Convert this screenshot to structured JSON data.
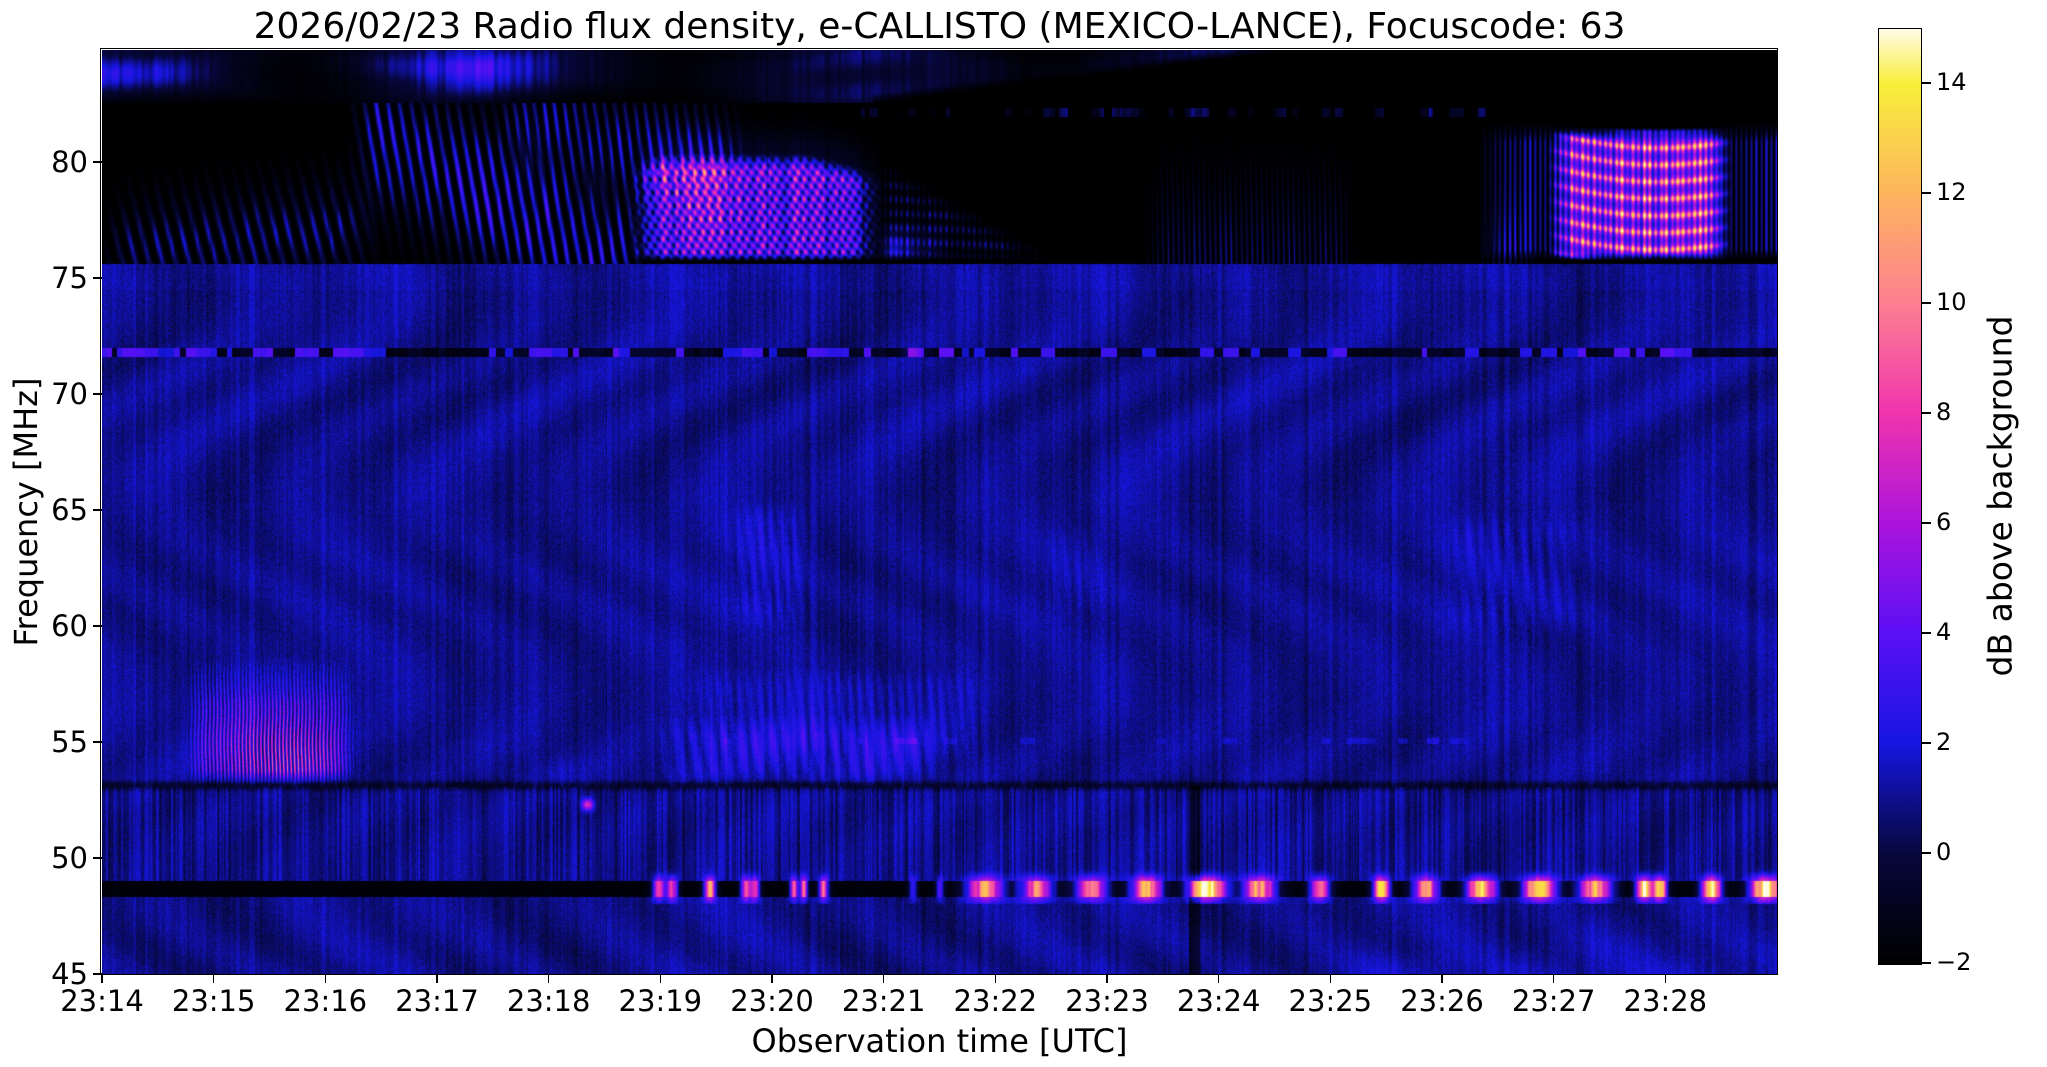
{
  "chart_data": {
    "type": "heatmap",
    "title": "2026/02/23  Radio flux density, e-CALLISTO (MEXICO-LANCE), Focuscode: 63",
    "xlabel": "Observation time [UTC]",
    "ylabel": "Frequency [MHz]",
    "colorbar_label": "dB above background",
    "meta": {
      "date": "2026/02/23",
      "network": "e-CALLISTO",
      "station": "MEXICO-LANCE",
      "focuscode": "63"
    },
    "x_ticks": [
      "23:14",
      "23:15",
      "23:16",
      "23:17",
      "23:18",
      "23:19",
      "23:20",
      "23:21",
      "23:22",
      "23:23",
      "23:24",
      "23:25",
      "23:26",
      "23:27",
      "23:28"
    ],
    "time_span_minutes": 15,
    "x_start": "23:14",
    "x_end": "23:29",
    "y_ticks": [
      80,
      75,
      70,
      65,
      60,
      55,
      50,
      45
    ],
    "y_range": [
      45,
      84.83
    ],
    "value_range": [
      -2,
      15
    ],
    "grid": false,
    "colorbar_ticks": [
      {
        "v": 14,
        "label": "14"
      },
      {
        "v": 12,
        "label": "12"
      },
      {
        "v": 10,
        "label": "10"
      },
      {
        "v": 8,
        "label": "8"
      },
      {
        "v": 6,
        "label": "6"
      },
      {
        "v": 4,
        "label": "4"
      },
      {
        "v": 2,
        "label": "2"
      },
      {
        "v": 0,
        "label": "0"
      },
      {
        "v": -2,
        "label": "−2"
      }
    ],
    "colormap_stops": [
      {
        "v": -2,
        "c": "#000000"
      },
      {
        "v": 0,
        "c": "#07073c"
      },
      {
        "v": 2,
        "c": "#1616e0"
      },
      {
        "v": 4,
        "c": "#5a10f5"
      },
      {
        "v": 6,
        "c": "#ab14dc"
      },
      {
        "v": 8,
        "c": "#ef34ae"
      },
      {
        "v": 10,
        "c": "#fc7f90"
      },
      {
        "v": 12,
        "c": "#fdb45f"
      },
      {
        "v": 14,
        "c": "#f8ef3a"
      },
      {
        "v": 15,
        "c": "#fffbe6"
      }
    ],
    "features": {
      "band_top": 82.55,
      "band_mid": 75.62,
      "band_rfi": [
        48.3,
        49.0
      ],
      "rfi_base": -1.75,
      "top_strip": {
        "amp": 2.4,
        "fade_t0": 6.9,
        "fade_slope": 0.62,
        "blob": {
          "t": 3.05,
          "f": 84.2,
          "amp": 2.6
        }
      },
      "stripes_main": {
        "t0": 2.2,
        "t1": 4.9,
        "fc0": 81.8,
        "drift": -2.6,
        "sigma": 2.1,
        "amp": 5.0,
        "period": 0.105,
        "slant": 2.2
      },
      "stripes_left": {
        "t0": 0.0,
        "t1": 2.5,
        "fc0": 76.0,
        "drift": 0.5,
        "sigma": 1.4,
        "amp": 3.2,
        "period": 0.12,
        "slant": 2.8
      },
      "stripes_fringe": {
        "t0": 3.5,
        "t1": 5.8,
        "fc0": 82.6,
        "drift": -1.5,
        "sigma": 1.7,
        "amp": 3.8,
        "period": 0.09,
        "slant": 2.0
      },
      "burst_main": {
        "t0": 4.7,
        "t1": 7.0,
        "f0": 75.72,
        "f1": 80.4,
        "amp": 8.8,
        "hatch_f": 11.0,
        "hatch_t": 75
      },
      "burst_tail": {
        "t0": 6.95,
        "t1": 8.55,
        "ftop0": 80.2,
        "slope": -2.7,
        "f0": 75.72
      },
      "striations_a": {
        "t0": 9.3,
        "t1": 11.25,
        "f0": 75.8,
        "sigmaF": 2.2,
        "amp": 2.6,
        "period": 0.047
      },
      "striations_b": {
        "t0": 12.3,
        "t1": 12.9,
        "f0": 75.8,
        "sigmaF": 1.5,
        "amp": 2.4,
        "period": 0.05
      },
      "burst_right": {
        "t0": 12.95,
        "t1": 14.6,
        "f0": 75.75,
        "f1": 81.5,
        "amp": 8.2,
        "rowfreq": 8.6,
        "rowamp": 5.2,
        "fringe_amp": 3.6
      },
      "edge_dashes": {
        "f0": 81.95,
        "f1": 82.35,
        "t0": 6.8,
        "t1": 12.7,
        "amp": 2.6
      },
      "dashline72": {
        "f": 71.8,
        "halfw": 0.2
      },
      "hline53": {
        "f": 53.12,
        "amp": -1.45
      },
      "burst_55": {
        "t0": 0.72,
        "t1": 2.3,
        "f0": 53.15,
        "f1": 58.7,
        "amp": 3.4,
        "period": 0.033,
        "core_t": 1.62,
        "core_st": 0.4,
        "core_f": 54.3,
        "core_sf": 1.3,
        "core_amp": 5.2
      },
      "soft_blobs": [
        {
          "t0": 4.9,
          "t1": 7.6,
          "f0": 52.95,
          "f1": 56.2,
          "amp": 1.5,
          "period": 0.14
        },
        {
          "t0": 3.85,
          "t1": 4.4,
          "f0": 52.95,
          "f1": 54.6,
          "amp": 1.2,
          "period": 0.1
        },
        {
          "t0": 5.2,
          "t1": 8.0,
          "f0": 54.0,
          "f1": 58.3,
          "amp": 0.85,
          "period": 0.09
        },
        {
          "t0": 5.5,
          "t1": 6.45,
          "f0": 59.8,
          "f1": 65.5,
          "amp": 1.1,
          "period": 0.1
        },
        {
          "t0": 11.9,
          "t1": 13.4,
          "f0": 59.5,
          "f1": 65.0,
          "amp": 0.75,
          "period": 0.12
        },
        {
          "t0": 8.35,
          "t1": 9.1,
          "f0": 60.0,
          "f1": 64.5,
          "amp": 0.65,
          "period": 0.1
        }
      ],
      "dashrow55": {
        "f": 55.05,
        "t0": 5.5,
        "t1": 12.5,
        "amp": 1.2
      },
      "dot": {
        "t": 4.35,
        "f": 52.3,
        "st": 0.035,
        "sf": 0.18,
        "amp": 7
      },
      "vline": {
        "t": 9.78,
        "w": 0.05,
        "f1": 53.1,
        "amp": -1.5
      },
      "wedge": {
        "t": 13.55,
        "spread": 1.35,
        "amp": 1.05
      }
    },
    "rfi_dashes": [
      {
        "t": 4.98,
        "w": 0.07,
        "p": 10
      },
      {
        "t": 5.1,
        "w": 0.07,
        "p": 10.5
      },
      {
        "t": 5.44,
        "w": 0.07,
        "p": 12
      },
      {
        "t": 5.76,
        "w": 0.06,
        "p": 10
      },
      {
        "t": 5.84,
        "w": 0.06,
        "p": 10
      },
      {
        "t": 6.19,
        "w": 0.05,
        "p": 9.5
      },
      {
        "t": 6.28,
        "w": 0.05,
        "p": 10
      },
      {
        "t": 6.46,
        "w": 0.06,
        "p": 10.5
      },
      {
        "t": 7.26,
        "w": 0.05,
        "p": 5
      },
      {
        "t": 7.5,
        "w": 0.05,
        "p": 5
      },
      {
        "t": 7.9,
        "w": 0.22,
        "p": 12
      },
      {
        "t": 8.36,
        "w": 0.2,
        "p": 11
      },
      {
        "t": 8.85,
        "w": 0.2,
        "p": 11
      },
      {
        "t": 9.35,
        "w": 0.18,
        "p": 15
      },
      {
        "t": 9.89,
        "w": 0.22,
        "p": 16.8
      },
      {
        "t": 10.36,
        "w": 0.2,
        "p": 13
      },
      {
        "t": 10.9,
        "w": 0.12,
        "p": 11.5
      },
      {
        "t": 11.45,
        "w": 0.1,
        "p": 15
      },
      {
        "t": 11.85,
        "w": 0.16,
        "p": 12
      },
      {
        "t": 12.35,
        "w": 0.18,
        "p": 14
      },
      {
        "t": 12.87,
        "w": 0.2,
        "p": 15.3
      },
      {
        "t": 13.37,
        "w": 0.2,
        "p": 13.8
      },
      {
        "t": 13.8,
        "w": 0.09,
        "p": 15.8
      },
      {
        "t": 13.94,
        "w": 0.09,
        "p": 15.8
      },
      {
        "t": 14.41,
        "w": 0.12,
        "p": 15.8
      },
      {
        "t": 14.89,
        "w": 0.18,
        "p": 16.5
      }
    ]
  }
}
